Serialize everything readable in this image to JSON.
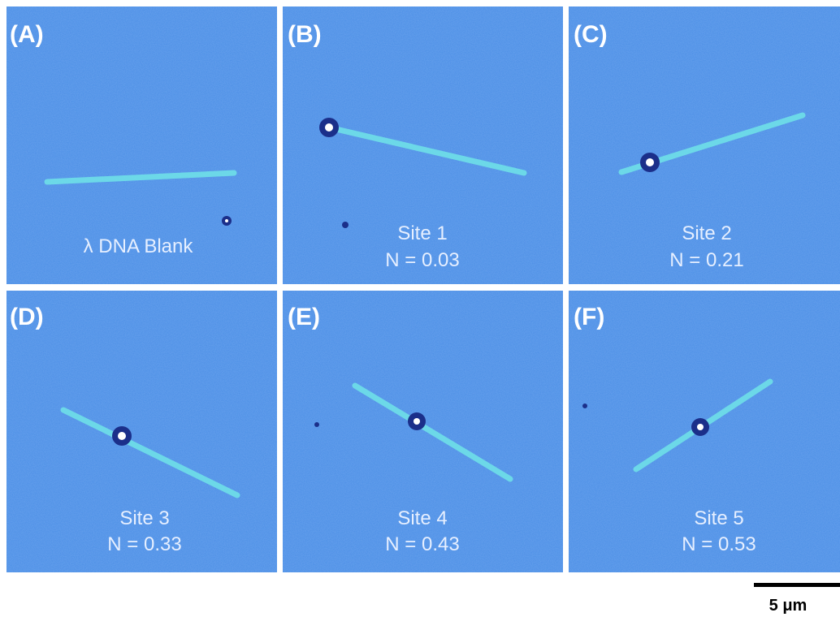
{
  "panels": [
    {
      "label": "(A)",
      "caption": [
        "λ DNA Blank"
      ]
    },
    {
      "label": "(B)",
      "caption": [
        "Site 1",
        "N = 0.03"
      ]
    },
    {
      "label": "(C)",
      "caption": [
        "Site 2",
        "N = 0.21"
      ]
    },
    {
      "label": "(D)",
      "caption": [
        "Site 3",
        "N = 0.33"
      ]
    },
    {
      "label": "(E)",
      "caption": [
        "Site 4",
        "N = 0.43"
      ]
    },
    {
      "label": "(F)",
      "caption": [
        "Site 5",
        "N = 0.53"
      ]
    }
  ],
  "scale_bar": "5 μm"
}
